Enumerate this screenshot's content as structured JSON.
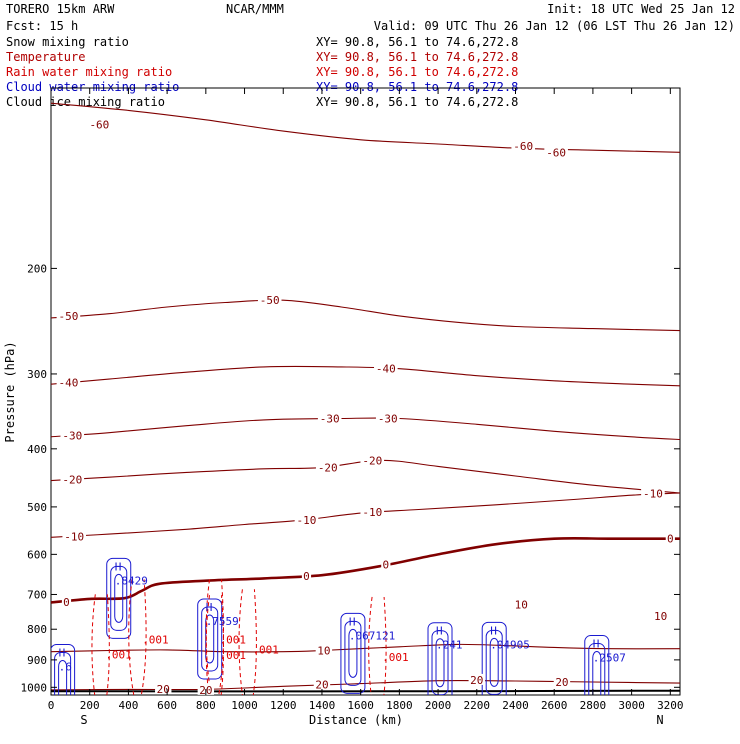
{
  "header": {
    "model": "TORERO  15km ARW",
    "center": "NCAR/MMM",
    "init": "Init: 18 UTC Wed 25 Jan 12",
    "fcst": "Fcst:   15 h",
    "valid": "Valid: 09 UTC Thu 26 Jan 12 (06 LST Thu 26 Jan 12)"
  },
  "legend": [
    {
      "name": "Snow mixing ratio",
      "xy": "XY=  90.8, 56.1 to  74.6,272.8",
      "color": "#000000"
    },
    {
      "name": "Temperature",
      "xy": "XY=  90.8, 56.1 to  74.6,272.8",
      "color": "#b00000"
    },
    {
      "name": "Rain water mixing ratio",
      "xy": "XY=  90.8, 56.1 to  74.6,272.8",
      "color": "#d00000"
    },
    {
      "name": "Cloud water mixing ratio",
      "xy": "XY=  90.8, 56.1 to  74.6,272.8",
      "color": "#0000c0"
    },
    {
      "name": "Cloud ice mixing ratio",
      "xy": "XY=  90.8, 56.1 to  74.6,272.8",
      "color": "#000000"
    }
  ],
  "chart_data": {
    "type": "line",
    "xlabel": "Distance (km)",
    "ylabel": "Pressure (hPa)",
    "xlim": [
      0,
      3250
    ],
    "ylim": [
      1030,
      100
    ],
    "y_scale": "log",
    "xticks": [
      0,
      200,
      400,
      600,
      800,
      1000,
      1200,
      1400,
      1600,
      1800,
      2000,
      2200,
      2400,
      2600,
      2800,
      3000,
      3200
    ],
    "yticks": [
      200,
      300,
      400,
      500,
      600,
      700,
      800,
      900,
      1000
    ],
    "x_end_labels": {
      "left": "S",
      "right": "N"
    },
    "temperature_contours": [
      {
        "level": -60,
        "bold": false,
        "labels": [
          {
            "x": 250,
            "p": 115,
            "text": "-60"
          },
          {
            "x": 2440,
            "p": 125,
            "text": "-60"
          },
          {
            "x": 2610,
            "p": 128,
            "text": "-60"
          }
        ],
        "points": [
          [
            0,
            106
          ],
          [
            400,
            109
          ],
          [
            800,
            113
          ],
          [
            1200,
            118
          ],
          [
            1600,
            122
          ],
          [
            2000,
            124
          ],
          [
            2400,
            126
          ],
          [
            2800,
            127
          ],
          [
            3250,
            128
          ]
        ]
      },
      {
        "level": -50,
        "bold": false,
        "labels": [
          {
            "x": 90,
            "p": 240,
            "text": "-50"
          },
          {
            "x": 1130,
            "p": 226,
            "text": "-50"
          }
        ],
        "points": [
          [
            0,
            242
          ],
          [
            300,
            238
          ],
          [
            600,
            232
          ],
          [
            900,
            228
          ],
          [
            1200,
            226
          ],
          [
            1500,
            232
          ],
          [
            1800,
            240
          ],
          [
            2100,
            246
          ],
          [
            2400,
            250
          ],
          [
            2800,
            252
          ],
          [
            3250,
            254
          ]
        ]
      },
      {
        "level": -40,
        "bold": false,
        "labels": [
          {
            "x": 90,
            "p": 310,
            "text": "-40"
          },
          {
            "x": 1730,
            "p": 294,
            "text": "-40"
          }
        ],
        "points": [
          [
            0,
            312
          ],
          [
            300,
            306
          ],
          [
            700,
            298
          ],
          [
            1100,
            292
          ],
          [
            1500,
            292
          ],
          [
            1800,
            294
          ],
          [
            2200,
            302
          ],
          [
            2600,
            308
          ],
          [
            3000,
            312
          ],
          [
            3250,
            314
          ]
        ]
      },
      {
        "level": -30,
        "bold": false,
        "labels": [
          {
            "x": 110,
            "p": 380,
            "text": "-30"
          },
          {
            "x": 1440,
            "p": 356,
            "text": "-30"
          },
          {
            "x": 1740,
            "p": 356,
            "text": "-30"
          }
        ],
        "points": [
          [
            0,
            382
          ],
          [
            300,
            376
          ],
          [
            700,
            366
          ],
          [
            1100,
            358
          ],
          [
            1500,
            356
          ],
          [
            1800,
            356
          ],
          [
            2200,
            364
          ],
          [
            2600,
            374
          ],
          [
            3000,
            382
          ],
          [
            3250,
            386
          ]
        ]
      },
      {
        "level": -20,
        "bold": false,
        "labels": [
          {
            "x": 110,
            "p": 450,
            "text": "-20"
          },
          {
            "x": 1430,
            "p": 430,
            "text": "-20"
          },
          {
            "x": 1660,
            "p": 418,
            "text": "-20"
          }
        ],
        "points": [
          [
            0,
            452
          ],
          [
            300,
            446
          ],
          [
            700,
            438
          ],
          [
            1100,
            432
          ],
          [
            1400,
            430
          ],
          [
            1700,
            418
          ],
          [
            2000,
            428
          ],
          [
            2400,
            444
          ],
          [
            2800,
            460
          ],
          [
            3250,
            474
          ]
        ]
      },
      {
        "level": -10,
        "bold": false,
        "labels": [
          {
            "x": 120,
            "p": 560,
            "text": "-10"
          },
          {
            "x": 1320,
            "p": 526,
            "text": "-10"
          },
          {
            "x": 1660,
            "p": 510,
            "text": "-10"
          },
          {
            "x": 3110,
            "p": 475,
            "text": "-10"
          }
        ],
        "points": [
          [
            0,
            562
          ],
          [
            300,
            555
          ],
          [
            700,
            545
          ],
          [
            1000,
            535
          ],
          [
            1300,
            526
          ],
          [
            1600,
            512
          ],
          [
            1900,
            505
          ],
          [
            2300,
            496
          ],
          [
            2700,
            486
          ],
          [
            3000,
            478
          ],
          [
            3250,
            474
          ]
        ]
      },
      {
        "level": 0,
        "bold": true,
        "labels": [
          {
            "x": 80,
            "p": 720,
            "text": "0"
          },
          {
            "x": 1320,
            "p": 652,
            "text": "0"
          },
          {
            "x": 1730,
            "p": 624,
            "text": "0"
          },
          {
            "x": 3200,
            "p": 565,
            "text": "0"
          }
        ],
        "points": [
          [
            0,
            722
          ],
          [
            200,
            712
          ],
          [
            380,
            710
          ],
          [
            470,
            690
          ],
          [
            560,
            672
          ],
          [
            800,
            664
          ],
          [
            1100,
            658
          ],
          [
            1400,
            650
          ],
          [
            1700,
            628
          ],
          [
            2000,
            600
          ],
          [
            2300,
            577
          ],
          [
            2600,
            565
          ],
          [
            2900,
            565
          ],
          [
            3250,
            565
          ]
        ]
      },
      {
        "level": 10,
        "bold": false,
        "labels": [
          {
            "x": 1410,
            "p": 868,
            "text": "10"
          },
          {
            "x": 2430,
            "p": 728,
            "text": "10"
          },
          {
            "x": 3150,
            "p": 760,
            "text": "10"
          }
        ],
        "points": [
          [
            0,
            872
          ],
          [
            300,
            868
          ],
          [
            600,
            866
          ],
          [
            900,
            872
          ],
          [
            1200,
            872
          ],
          [
            1400,
            868
          ],
          [
            1800,
            856
          ],
          [
            2100,
            848
          ],
          [
            2350,
            852
          ],
          [
            2600,
            858
          ],
          [
            2900,
            862
          ],
          [
            3250,
            862
          ]
        ]
      },
      {
        "level": 20,
        "bold": false,
        "labels": [
          {
            "x": 580,
            "p": 1006,
            "text": "20"
          },
          {
            "x": 800,
            "p": 1010,
            "text": "20"
          },
          {
            "x": 1400,
            "p": 990,
            "text": "20"
          },
          {
            "x": 2200,
            "p": 972,
            "text": "20"
          },
          {
            "x": 2640,
            "p": 980,
            "text": "20"
          }
        ],
        "points": [
          [
            0,
            1010
          ],
          [
            400,
            1008
          ],
          [
            800,
            1008
          ],
          [
            1200,
            996
          ],
          [
            1600,
            986
          ],
          [
            2000,
            975
          ],
          [
            2400,
            976
          ],
          [
            2800,
            980
          ],
          [
            3250,
            984
          ]
        ]
      }
    ],
    "cloud_water_max_labels": [
      {
        "x": 350,
        "p": 663,
        "text": ".8429"
      },
      {
        "x": 820,
        "p": 775,
        "text": ".7559"
      },
      {
        "x": 1560,
        "p": 819,
        "text": ".067121"
      },
      {
        "x": 2010,
        "p": 849,
        "text": ".241"
      },
      {
        "x": 2290,
        "p": 848,
        "text": ".04905"
      },
      {
        "x": 2820,
        "p": 892,
        "text": ".2507"
      },
      {
        "x": 60,
        "p": 923,
        "text": ".6"
      }
    ],
    "rain_water_labels": [
      {
        "x": 450,
        "p": 832,
        "text": ".001"
      },
      {
        "x": 850,
        "p": 832,
        "text": ".001"
      },
      {
        "x": 1020,
        "p": 864,
        "text": ".001"
      },
      {
        "x": 1690,
        "p": 890,
        "text": ".001"
      },
      {
        "x": 850,
        "p": 884,
        "text": ".001"
      },
      {
        "x": 260,
        "p": 881,
        "text": ".001"
      }
    ],
    "surface_pressure": [
      [
        0,
        1015
      ],
      [
        1000,
        1016
      ],
      [
        2000,
        1015
      ],
      [
        3250,
        1013
      ]
    ]
  }
}
